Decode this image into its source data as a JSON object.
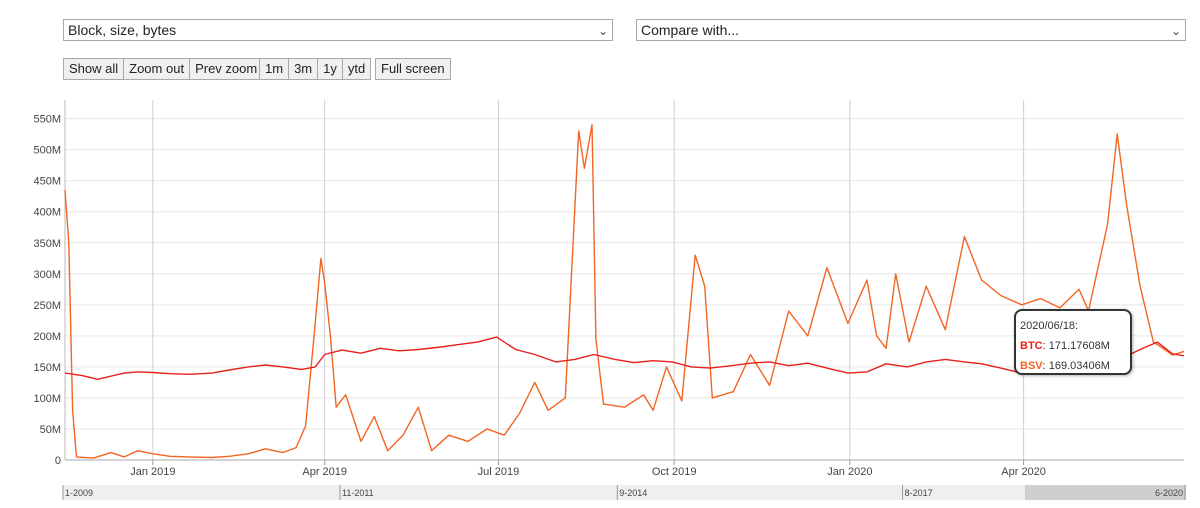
{
  "controls": {
    "metric_select": "Block, size, bytes",
    "compare_select": "Compare with...",
    "zoom_buttons": [
      "Show all",
      "Zoom out",
      "Prev zoom"
    ],
    "range_buttons": [
      "1m",
      "3m",
      "1y",
      "ytd"
    ],
    "fullscreen_button": "Full screen"
  },
  "navigator": {
    "labels": [
      "1-2009",
      "11-2011",
      "9-2014",
      "8-2017",
      "6-2020"
    ],
    "selected_range": [
      "2018-11",
      "2020-06"
    ]
  },
  "tooltip": {
    "date": "2020/06/18:",
    "rows": [
      {
        "name": "BTC",
        "value": "171.17608M",
        "color": "#e8201b"
      },
      {
        "name": "BSV",
        "value": "169.03406M",
        "color": "#f26522"
      }
    ]
  },
  "chart_data": {
    "type": "line",
    "title": "",
    "xlabel": "",
    "ylabel": "",
    "y_ticks": [
      "0",
      "50M",
      "100M",
      "150M",
      "200M",
      "250M",
      "300M",
      "350M",
      "400M",
      "450M",
      "500M",
      "550M"
    ],
    "x_ticks": [
      "Jan 2019",
      "Apr 2019",
      "Jul 2019",
      "Oct 2019",
      "Jan 2020",
      "Apr 2020"
    ],
    "x_tick_dates": [
      "2019-01-01",
      "2019-04-01",
      "2019-07-01",
      "2019-10-01",
      "2020-01-01",
      "2020-04-01"
    ],
    "xlim": [
      "2018-11-16",
      "2020-06-24"
    ],
    "ylim": [
      0,
      580
    ],
    "unit": "M bytes",
    "grid": true,
    "series": [
      {
        "name": "BTC",
        "color": "#e8201b",
        "points": [
          [
            "2018-11-16",
            140
          ],
          [
            "2018-11-25",
            136
          ],
          [
            "2018-12-03",
            130
          ],
          [
            "2018-12-10",
            135
          ],
          [
            "2018-12-17",
            140
          ],
          [
            "2018-12-24",
            142
          ],
          [
            "2019-01-01",
            141
          ],
          [
            "2019-01-10",
            139
          ],
          [
            "2019-01-20",
            138
          ],
          [
            "2019-02-01",
            140
          ],
          [
            "2019-02-10",
            145
          ],
          [
            "2019-02-20",
            150
          ],
          [
            "2019-03-01",
            153
          ],
          [
            "2019-03-10",
            150
          ],
          [
            "2019-03-20",
            146
          ],
          [
            "2019-03-27",
            150
          ],
          [
            "2019-04-01",
            170
          ],
          [
            "2019-04-10",
            177
          ],
          [
            "2019-04-20",
            172
          ],
          [
            "2019-04-30",
            180
          ],
          [
            "2019-05-10",
            176
          ],
          [
            "2019-05-20",
            178
          ],
          [
            "2019-06-01",
            182
          ],
          [
            "2019-06-10",
            186
          ],
          [
            "2019-06-20",
            190
          ],
          [
            "2019-06-30",
            198
          ],
          [
            "2019-07-10",
            178
          ],
          [
            "2019-07-20",
            170
          ],
          [
            "2019-07-31",
            158
          ],
          [
            "2019-08-10",
            162
          ],
          [
            "2019-08-20",
            170
          ],
          [
            "2019-08-31",
            162
          ],
          [
            "2019-09-10",
            157
          ],
          [
            "2019-09-20",
            160
          ],
          [
            "2019-09-30",
            158
          ],
          [
            "2019-10-10",
            150
          ],
          [
            "2019-10-20",
            148
          ],
          [
            "2019-10-31",
            152
          ],
          [
            "2019-11-10",
            156
          ],
          [
            "2019-11-20",
            158
          ],
          [
            "2019-11-30",
            152
          ],
          [
            "2019-12-10",
            156
          ],
          [
            "2019-12-20",
            148
          ],
          [
            "2019-12-31",
            140
          ],
          [
            "2020-01-10",
            142
          ],
          [
            "2020-01-20",
            155
          ],
          [
            "2020-01-31",
            150
          ],
          [
            "2020-02-10",
            158
          ],
          [
            "2020-02-20",
            162
          ],
          [
            "2020-03-01",
            158
          ],
          [
            "2020-03-10",
            155
          ],
          [
            "2020-03-20",
            148
          ],
          [
            "2020-03-31",
            140
          ],
          [
            "2020-04-10",
            150
          ],
          [
            "2020-04-20",
            160
          ],
          [
            "2020-05-01",
            158
          ],
          [
            "2020-05-10",
            165
          ],
          [
            "2020-05-20",
            160
          ],
          [
            "2020-06-01",
            178
          ],
          [
            "2020-06-10",
            190
          ],
          [
            "2020-06-18",
            171
          ],
          [
            "2020-06-24",
            168
          ]
        ]
      },
      {
        "name": "BSV",
        "color": "#f26522",
        "points": [
          [
            "2018-11-16",
            435
          ],
          [
            "2018-11-18",
            350
          ],
          [
            "2018-11-20",
            80
          ],
          [
            "2018-11-22",
            5
          ],
          [
            "2018-12-01",
            3
          ],
          [
            "2018-12-10",
            12
          ],
          [
            "2018-12-17",
            5
          ],
          [
            "2018-12-24",
            15
          ],
          [
            "2019-01-01",
            10
          ],
          [
            "2019-01-10",
            6
          ],
          [
            "2019-01-20",
            5
          ],
          [
            "2019-02-01",
            4
          ],
          [
            "2019-02-10",
            6
          ],
          [
            "2019-02-20",
            10
          ],
          [
            "2019-03-01",
            18
          ],
          [
            "2019-03-10",
            12
          ],
          [
            "2019-03-17",
            20
          ],
          [
            "2019-03-22",
            55
          ],
          [
            "2019-03-27",
            220
          ],
          [
            "2019-03-30",
            325
          ],
          [
            "2019-04-01",
            285
          ],
          [
            "2019-04-04",
            200
          ],
          [
            "2019-04-07",
            85
          ],
          [
            "2019-04-12",
            105
          ],
          [
            "2019-04-20",
            30
          ],
          [
            "2019-04-27",
            70
          ],
          [
            "2019-05-04",
            15
          ],
          [
            "2019-05-12",
            40
          ],
          [
            "2019-05-20",
            85
          ],
          [
            "2019-05-27",
            15
          ],
          [
            "2019-06-05",
            40
          ],
          [
            "2019-06-15",
            30
          ],
          [
            "2019-06-25",
            50
          ],
          [
            "2019-07-04",
            40
          ],
          [
            "2019-07-12",
            75
          ],
          [
            "2019-07-20",
            125
          ],
          [
            "2019-07-27",
            80
          ],
          [
            "2019-08-05",
            100
          ],
          [
            "2019-08-12",
            530
          ],
          [
            "2019-08-15",
            470
          ],
          [
            "2019-08-19",
            540
          ],
          [
            "2019-08-21",
            195
          ],
          [
            "2019-08-25",
            90
          ],
          [
            "2019-09-05",
            85
          ],
          [
            "2019-09-15",
            105
          ],
          [
            "2019-09-20",
            80
          ],
          [
            "2019-09-27",
            150
          ],
          [
            "2019-10-05",
            95
          ],
          [
            "2019-10-12",
            330
          ],
          [
            "2019-10-17",
            280
          ],
          [
            "2019-10-21",
            100
          ],
          [
            "2019-11-01",
            110
          ],
          [
            "2019-11-10",
            170
          ],
          [
            "2019-11-20",
            120
          ],
          [
            "2019-11-30",
            240
          ],
          [
            "2019-12-10",
            200
          ],
          [
            "2019-12-20",
            310
          ],
          [
            "2019-12-31",
            220
          ],
          [
            "2020-01-10",
            290
          ],
          [
            "2020-01-15",
            200
          ],
          [
            "2020-01-20",
            180
          ],
          [
            "2020-01-25",
            300
          ],
          [
            "2020-02-01",
            190
          ],
          [
            "2020-02-10",
            280
          ],
          [
            "2020-02-20",
            210
          ],
          [
            "2020-03-01",
            360
          ],
          [
            "2020-03-10",
            290
          ],
          [
            "2020-03-20",
            265
          ],
          [
            "2020-03-31",
            250
          ],
          [
            "2020-04-10",
            260
          ],
          [
            "2020-04-20",
            245
          ],
          [
            "2020-04-30",
            275
          ],
          [
            "2020-05-05",
            240
          ],
          [
            "2020-05-15",
            380
          ],
          [
            "2020-05-20",
            525
          ],
          [
            "2020-05-25",
            410
          ],
          [
            "2020-06-01",
            280
          ],
          [
            "2020-06-08",
            190
          ],
          [
            "2020-06-13",
            180
          ],
          [
            "2020-06-18",
            169
          ],
          [
            "2020-06-24",
            175
          ]
        ]
      }
    ]
  }
}
